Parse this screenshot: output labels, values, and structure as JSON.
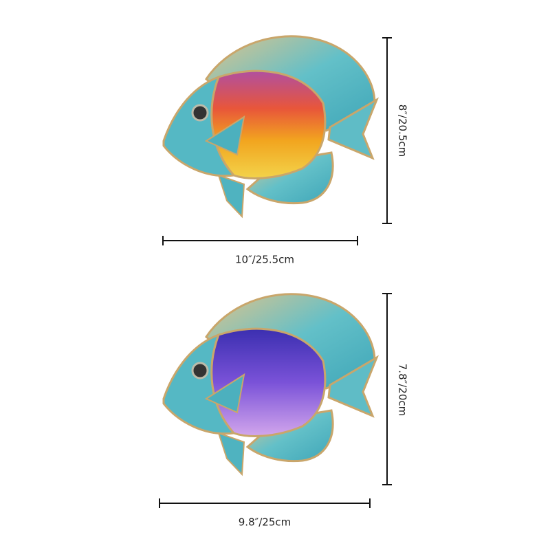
{
  "products": [
    {
      "height_label": "8″/20.5cm",
      "width_label": "10″/25.5cm"
    },
    {
      "height_label": "7.8″/20cm",
      "width_label": "9.8″/25cm"
    }
  ]
}
